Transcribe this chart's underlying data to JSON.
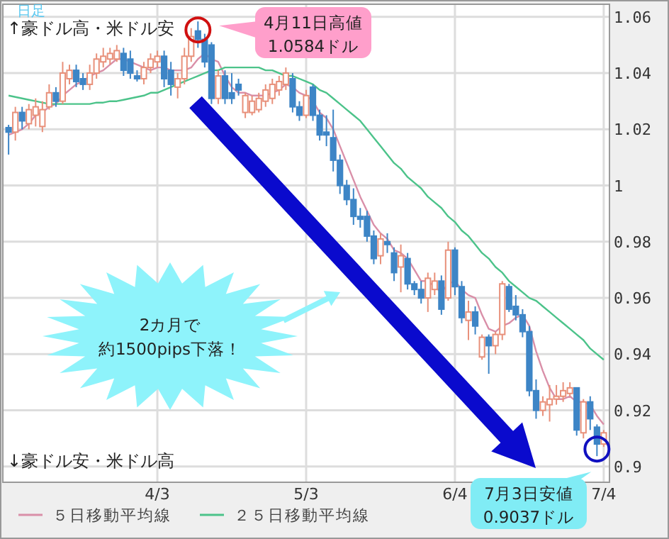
{
  "chart_data": {
    "type": "candlestick",
    "subtitle": "日足",
    "categories": [
      null,
      null,
      null,
      null,
      null,
      null,
      null,
      null,
      null,
      null,
      null,
      null,
      null,
      null,
      null,
      null,
      null,
      null,
      null,
      null,
      null,
      null,
      "4/3",
      null,
      null,
      null,
      null,
      null,
      null,
      null,
      null,
      null,
      null,
      null,
      null,
      null,
      null,
      null,
      null,
      null,
      null,
      null,
      null,
      null,
      "5/3",
      null,
      null,
      null,
      null,
      null,
      null,
      null,
      null,
      null,
      null,
      null,
      null,
      null,
      null,
      null,
      null,
      null,
      null,
      null,
      null,
      null,
      "6/4",
      null,
      null,
      null,
      null,
      null,
      null,
      null,
      null,
      null,
      null,
      null,
      null,
      null,
      null,
      null,
      null,
      null,
      null,
      null,
      null,
      null,
      "7/4"
    ],
    "ohlc": [
      [
        1.0206,
        1.0216,
        1.011,
        1.019
      ],
      [
        1.019,
        1.028,
        1.016,
        1.026
      ],
      [
        1.026,
        1.028,
        1.02,
        1.023
      ],
      [
        1.022,
        1.029,
        1.02,
        1.027
      ],
      [
        1.025,
        1.031,
        1.021,
        1.028
      ],
      [
        1.021,
        1.03,
        1.019,
        1.027
      ],
      [
        1.028,
        1.036,
        1.027,
        1.033
      ],
      [
        1.033,
        1.035,
        1.028,
        1.03
      ],
      [
        1.03,
        1.044,
        1.029,
        1.04
      ],
      [
        1.038,
        1.043,
        1.036,
        1.041
      ],
      [
        1.041,
        1.043,
        1.035,
        1.037
      ],
      [
        1.038,
        1.04,
        1.034,
        1.036
      ],
      [
        1.036,
        1.043,
        1.034,
        1.04
      ],
      [
        1.04,
        1.047,
        1.038,
        1.045
      ],
      [
        1.044,
        1.049,
        1.042,
        1.046
      ],
      [
        1.045,
        1.049,
        1.043,
        1.047
      ],
      [
        1.045,
        1.05,
        1.044,
        1.048
      ],
      [
        1.047,
        1.049,
        1.039,
        1.041
      ],
      [
        1.045,
        1.048,
        1.038,
        1.04
      ],
      [
        1.039,
        1.041,
        1.037,
        1.038
      ],
      [
        1.038,
        1.044,
        1.036,
        1.042
      ],
      [
        1.042,
        1.047,
        1.04,
        1.045
      ],
      [
        1.044,
        1.048,
        1.042,
        1.046
      ],
      [
        1.046,
        1.048,
        1.035,
        1.038
      ],
      [
        1.041,
        1.044,
        1.032,
        1.036
      ],
      [
        1.035,
        1.04,
        1.031,
        1.038
      ],
      [
        1.038,
        1.049,
        1.036,
        1.046
      ],
      [
        1.046,
        1.056,
        1.044,
        1.053
      ],
      [
        1.055,
        1.0584,
        1.049,
        1.052
      ],
      [
        1.052,
        1.054,
        1.042,
        1.044
      ],
      [
        1.05,
        1.051,
        1.029,
        1.031
      ],
      [
        1.031,
        1.041,
        1.029,
        1.039
      ],
      [
        1.039,
        1.041,
        1.029,
        1.031
      ],
      [
        1.033,
        1.04,
        1.029,
        1.031
      ],
      [
        1.036,
        1.038,
        1.032,
        1.034
      ],
      [
        1.026,
        1.033,
        1.024,
        1.032
      ],
      [
        1.026,
        1.032,
        1.025,
        1.03
      ],
      [
        1.027,
        1.033,
        1.026,
        1.031
      ],
      [
        1.03,
        1.036,
        1.028,
        1.034
      ],
      [
        1.031,
        1.038,
        1.029,
        1.036
      ],
      [
        1.034,
        1.039,
        1.032,
        1.037
      ],
      [
        1.036,
        1.042,
        1.034,
        1.04
      ],
      [
        1.038,
        1.04,
        1.026,
        1.028
      ],
      [
        1.028,
        1.03,
        1.023,
        1.025
      ],
      [
        1.025,
        1.034,
        1.024,
        1.032
      ],
      [
        1.035,
        1.036,
        1.023,
        1.025
      ],
      [
        1.025,
        1.027,
        1.016,
        1.018
      ],
      [
        1.019,
        1.025,
        1.014,
        1.018
      ],
      [
        1.017,
        1.027,
        1.005,
        1.009
      ],
      [
        1.009,
        1.011,
        0.997,
        1.0
      ],
      [
        1.0,
        1.002,
        0.993,
        0.995
      ],
      [
        0.995,
        0.999,
        0.986,
        0.989
      ],
      [
        0.989,
        0.992,
        0.985,
        0.988
      ],
      [
        0.989,
        0.991,
        0.98,
        0.982
      ],
      [
        0.982,
        0.984,
        0.972,
        0.974
      ],
      [
        0.975,
        0.983,
        0.972,
        0.981
      ],
      [
        0.98,
        0.983,
        0.976,
        0.979
      ],
      [
        0.976,
        0.978,
        0.966,
        0.969
      ],
      [
        0.971,
        0.979,
        0.962,
        0.975
      ],
      [
        0.974,
        0.976,
        0.963,
        0.965
      ],
      [
        0.965,
        0.966,
        0.961,
        0.963
      ],
      [
        0.963,
        0.966,
        0.958,
        0.96
      ],
      [
        0.96,
        0.969,
        0.955,
        0.967
      ],
      [
        0.963,
        0.969,
        0.961,
        0.966
      ],
      [
        0.966,
        0.968,
        0.954,
        0.956
      ],
      [
        0.96,
        0.98,
        0.959,
        0.977
      ],
      [
        0.977,
        0.978,
        0.961,
        0.964
      ],
      [
        0.964,
        0.966,
        0.951,
        0.953
      ],
      [
        0.952,
        0.959,
        0.945,
        0.955
      ],
      [
        0.955,
        0.957,
        0.947,
        0.95
      ],
      [
        0.939,
        0.947,
        0.938,
        0.946
      ],
      [
        0.946,
        0.947,
        0.933,
        0.943
      ],
      [
        0.943,
        0.948,
        0.94,
        0.947
      ],
      [
        0.947,
        0.966,
        0.945,
        0.965
      ],
      [
        0.964,
        0.965,
        0.955,
        0.956
      ],
      [
        0.957,
        0.961,
        0.952,
        0.954
      ],
      [
        0.954,
        0.956,
        0.946,
        0.948
      ],
      [
        0.948,
        0.95,
        0.925,
        0.927
      ],
      [
        0.927,
        0.931,
        0.917,
        0.92
      ],
      [
        0.92,
        0.925,
        0.918,
        0.923
      ],
      [
        0.922,
        0.929,
        0.916,
        0.924
      ],
      [
        0.924,
        0.929,
        0.922,
        0.925
      ],
      [
        0.925,
        0.93,
        0.923,
        0.927
      ],
      [
        0.926,
        0.93,
        0.925,
        0.928
      ],
      [
        0.928,
        0.928,
        0.911,
        0.913
      ],
      [
        0.912,
        0.924,
        0.91,
        0.923
      ],
      [
        0.923,
        0.925,
        0.913,
        0.917
      ],
      [
        0.914,
        0.915,
        0.9037,
        0.908
      ],
      [
        0.908,
        0.913,
        0.907,
        0.912
      ]
    ],
    "series": [
      {
        "name": "５日移動平均線",
        "type": "line",
        "color": "#d98fa8",
        "values": [
          1.018,
          1.019,
          1.02,
          1.022,
          1.025,
          1.026,
          1.028,
          1.029,
          1.032,
          1.034,
          1.036,
          1.037,
          1.039,
          1.04,
          1.041,
          1.043,
          1.045,
          1.045,
          1.044,
          1.043,
          1.042,
          1.041,
          1.042,
          1.042,
          1.041,
          1.041,
          1.041,
          1.042,
          1.045,
          1.047,
          1.045,
          1.044,
          1.039,
          1.035,
          1.033,
          1.033,
          1.032,
          1.032,
          1.032,
          1.033,
          1.034,
          1.036,
          1.035,
          1.033,
          1.032,
          1.03,
          1.026,
          1.024,
          1.02,
          1.014,
          1.008,
          1.002,
          0.996,
          0.991,
          0.986,
          0.983,
          0.981,
          0.977,
          0.976,
          0.974,
          0.97,
          0.966,
          0.966,
          0.964,
          0.962,
          0.965,
          0.966,
          0.963,
          0.961,
          0.96,
          0.954,
          0.949,
          0.948,
          0.95,
          0.951,
          0.953,
          0.954,
          0.95,
          0.941,
          0.934,
          0.928,
          0.924,
          0.924,
          0.925,
          0.923,
          0.923,
          0.922,
          0.918,
          0.915
        ]
      },
      {
        "name": "２５日移動平均線",
        "type": "line",
        "color": "#4cc38a",
        "values": [
          1.032,
          1.0315,
          1.031,
          1.0305,
          1.03,
          1.0295,
          1.029,
          1.029,
          1.029,
          1.029,
          1.029,
          1.029,
          1.029,
          1.0295,
          1.0295,
          1.03,
          1.03,
          1.0305,
          1.031,
          1.0315,
          1.032,
          1.033,
          1.033,
          1.034,
          1.035,
          1.036,
          1.037,
          1.038,
          1.039,
          1.04,
          1.041,
          1.041,
          1.042,
          1.042,
          1.042,
          1.042,
          1.042,
          1.042,
          1.041,
          1.041,
          1.04,
          1.039,
          1.039,
          1.038,
          1.037,
          1.036,
          1.034,
          1.033,
          1.031,
          1.029,
          1.027,
          1.025,
          1.023,
          1.02,
          1.017,
          1.014,
          1.011,
          1.008,
          1.006,
          1.003,
          1.001,
          0.999,
          0.996,
          0.994,
          0.992,
          0.989,
          0.987,
          0.984,
          0.982,
          0.979,
          0.976,
          0.974,
          0.971,
          0.969,
          0.966,
          0.964,
          0.962,
          0.96,
          0.959,
          0.957,
          0.955,
          0.953,
          0.951,
          0.949,
          0.947,
          0.945,
          0.942,
          0.94,
          0.938
        ]
      }
    ],
    "ylim": [
      0.8944,
      1.0645
    ],
    "yticks": [
      0.9,
      0.92,
      0.94,
      0.96,
      0.98,
      1,
      1.02,
      1.04,
      1.06
    ],
    "grid": true,
    "legend": "bottom",
    "annotations": [
      "↑豪ドル高・米ドル安",
      "↓豪ドル安・米ドル高",
      "4月11日高値\n1.0584ドル",
      "7月3日安値\n0.9037ドル",
      "2カ月で",
      "約1500pips下落！"
    ]
  }
}
